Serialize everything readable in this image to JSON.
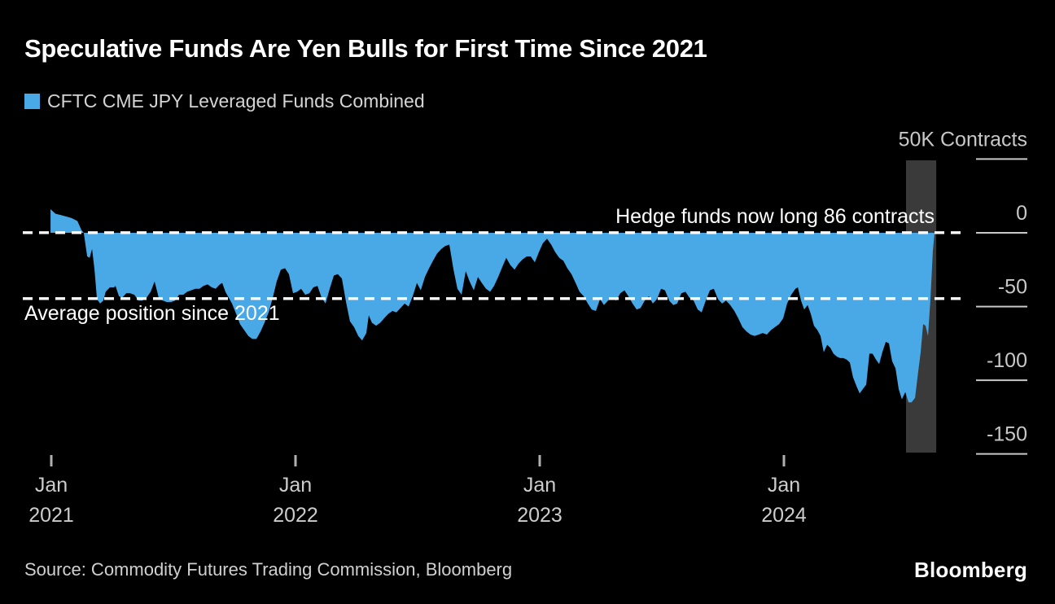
{
  "header": {
    "title": "Speculative Funds Are Yen Bulls for First Time Since 2021",
    "legend": {
      "label": "CFTC CME JPY Leveraged Funds Combined",
      "swatch_color": "#49a8e6"
    }
  },
  "axis": {
    "y_ticks": [
      {
        "value": 50,
        "label": "50K Contracts"
      },
      {
        "value": 0,
        "label": "0"
      },
      {
        "value": -50,
        "label": "-50"
      },
      {
        "value": -100,
        "label": "-100"
      },
      {
        "value": -150,
        "label": "-150"
      }
    ],
    "x_ticks": [
      {
        "t": 2021,
        "line1": "Jan",
        "line2": "2021"
      },
      {
        "t": 2022,
        "line1": "Jan",
        "line2": "2022"
      },
      {
        "t": 2023,
        "line1": "Jan",
        "line2": "2023"
      },
      {
        "t": 2024,
        "line1": "Jan",
        "line2": "2024"
      }
    ]
  },
  "annotations": {
    "now_line": {
      "text": "Hedge funds now long 86 contracts",
      "value": 0.086
    },
    "avg_line": {
      "text": "Average position since 2021",
      "value": -44.6
    }
  },
  "highlight_band": {
    "t_start": 2024.5,
    "t_end": 2024.617,
    "color": "#3a3a3a"
  },
  "footer": {
    "source": "Source: Commodity Futures Trading Commission, Bloomberg",
    "logo": "Bloomberg"
  },
  "chart_data": {
    "type": "area",
    "series_name": "CFTC CME JPY Leveraged Funds Combined",
    "unit": "thousand contracts",
    "xlim": [
      2020.883,
      2024.733
    ],
    "ylim": [
      -160,
      55
    ],
    "color": "#49a8e6",
    "baseline": 0,
    "points": [
      [
        2020.997,
        16
      ],
      [
        2021.017,
        13
      ],
      [
        2021.04,
        12
      ],
      [
        2021.063,
        11
      ],
      [
        2021.083,
        10
      ],
      [
        2021.107,
        8
      ],
      [
        2021.123,
        2
      ],
      [
        2021.133,
        0
      ],
      [
        2021.147,
        -16
      ],
      [
        2021.157,
        -17
      ],
      [
        2021.167,
        -11
      ],
      [
        2021.177,
        -25
      ],
      [
        2021.187,
        -45
      ],
      [
        2021.2,
        -48
      ],
      [
        2021.213,
        -46
      ],
      [
        2021.223,
        -40
      ],
      [
        2021.24,
        -37
      ],
      [
        2021.257,
        -37
      ],
      [
        2021.263,
        -36
      ],
      [
        2021.277,
        -43
      ],
      [
        2021.29,
        -44
      ],
      [
        2021.307,
        -41
      ],
      [
        2021.323,
        -41
      ],
      [
        2021.34,
        -42
      ],
      [
        2021.357,
        -46
      ],
      [
        2021.373,
        -46
      ],
      [
        2021.39,
        -44
      ],
      [
        2021.407,
        -40
      ],
      [
        2021.423,
        -33
      ],
      [
        2021.44,
        -44
      ],
      [
        2021.457,
        -46
      ],
      [
        2021.473,
        -47
      ],
      [
        2021.49,
        -47
      ],
      [
        2021.507,
        -46
      ],
      [
        2021.523,
        -42
      ],
      [
        2021.54,
        -42
      ],
      [
        2021.557,
        -40
      ],
      [
        2021.573,
        -39
      ],
      [
        2021.59,
        -38
      ],
      [
        2021.607,
        -38
      ],
      [
        2021.623,
        -36
      ],
      [
        2021.64,
        -35
      ],
      [
        2021.657,
        -37
      ],
      [
        2021.673,
        -38
      ],
      [
        2021.69,
        -35
      ],
      [
        2021.7,
        -34
      ],
      [
        2021.713,
        -40
      ],
      [
        2021.723,
        -43
      ],
      [
        2021.74,
        -48
      ],
      [
        2021.757,
        -55
      ],
      [
        2021.773,
        -62
      ],
      [
        2021.79,
        -66
      ],
      [
        2021.807,
        -70
      ],
      [
        2021.823,
        -72
      ],
      [
        2021.84,
        -72
      ],
      [
        2021.857,
        -67
      ],
      [
        2021.873,
        -61
      ],
      [
        2021.89,
        -54
      ],
      [
        2021.907,
        -44
      ],
      [
        2021.923,
        -33
      ],
      [
        2021.94,
        -25
      ],
      [
        2021.957,
        -24
      ],
      [
        2021.973,
        -28
      ],
      [
        2021.99,
        -41
      ],
      [
        2022.007,
        -40
      ],
      [
        2022.023,
        -38
      ],
      [
        2022.04,
        -42
      ],
      [
        2022.057,
        -41
      ],
      [
        2022.073,
        -37
      ],
      [
        2022.09,
        -36
      ],
      [
        2022.107,
        -44
      ],
      [
        2022.123,
        -48
      ],
      [
        2022.14,
        -38
      ],
      [
        2022.157,
        -29
      ],
      [
        2022.173,
        -28
      ],
      [
        2022.19,
        -31
      ],
      [
        2022.207,
        -47
      ],
      [
        2022.223,
        -60
      ],
      [
        2022.24,
        -64
      ],
      [
        2022.257,
        -70
      ],
      [
        2022.273,
        -73
      ],
      [
        2022.29,
        -68
      ],
      [
        2022.3,
        -56
      ],
      [
        2022.313,
        -61
      ],
      [
        2022.33,
        -63
      ],
      [
        2022.347,
        -61
      ],
      [
        2022.363,
        -58
      ],
      [
        2022.38,
        -55
      ],
      [
        2022.397,
        -53
      ],
      [
        2022.413,
        -54
      ],
      [
        2022.43,
        -51
      ],
      [
        2022.447,
        -48
      ],
      [
        2022.463,
        -50
      ],
      [
        2022.48,
        -43
      ],
      [
        2022.497,
        -34
      ],
      [
        2022.513,
        -39
      ],
      [
        2022.53,
        -30
      ],
      [
        2022.547,
        -24
      ],
      [
        2022.563,
        -19
      ],
      [
        2022.58,
        -14
      ],
      [
        2022.597,
        -11
      ],
      [
        2022.613,
        -9
      ],
      [
        2022.63,
        -8
      ],
      [
        2022.647,
        -25
      ],
      [
        2022.663,
        -38
      ],
      [
        2022.68,
        -42
      ],
      [
        2022.697,
        -26
      ],
      [
        2022.713,
        -33
      ],
      [
        2022.73,
        -39
      ],
      [
        2022.747,
        -30
      ],
      [
        2022.763,
        -34
      ],
      [
        2022.78,
        -38
      ],
      [
        2022.797,
        -40
      ],
      [
        2022.813,
        -36
      ],
      [
        2022.83,
        -30
      ],
      [
        2022.847,
        -23
      ],
      [
        2022.863,
        -17
      ],
      [
        2022.88,
        -22
      ],
      [
        2022.897,
        -25
      ],
      [
        2022.913,
        -21
      ],
      [
        2022.93,
        -18
      ],
      [
        2022.947,
        -16
      ],
      [
        2022.963,
        -16
      ],
      [
        2022.98,
        -20
      ],
      [
        2022.997,
        -13
      ],
      [
        2023.013,
        -7
      ],
      [
        2023.03,
        -4
      ],
      [
        2023.047,
        -8
      ],
      [
        2023.063,
        -13
      ],
      [
        2023.08,
        -17
      ],
      [
        2023.097,
        -19
      ],
      [
        2023.113,
        -24
      ],
      [
        2023.13,
        -28
      ],
      [
        2023.147,
        -34
      ],
      [
        2023.163,
        -40
      ],
      [
        2023.18,
        -43
      ],
      [
        2023.197,
        -48
      ],
      [
        2023.213,
        -52
      ],
      [
        2023.23,
        -53
      ],
      [
        2023.247,
        -45
      ],
      [
        2023.263,
        -49
      ],
      [
        2023.28,
        -46
      ],
      [
        2023.297,
        -44
      ],
      [
        2023.313,
        -46
      ],
      [
        2023.33,
        -41
      ],
      [
        2023.347,
        -39
      ],
      [
        2023.363,
        -43
      ],
      [
        2023.38,
        -48
      ],
      [
        2023.397,
        -52
      ],
      [
        2023.413,
        -51
      ],
      [
        2023.43,
        -46
      ],
      [
        2023.447,
        -43
      ],
      [
        2023.463,
        -48
      ],
      [
        2023.48,
        -45
      ],
      [
        2023.497,
        -38
      ],
      [
        2023.513,
        -39
      ],
      [
        2023.53,
        -46
      ],
      [
        2023.547,
        -49
      ],
      [
        2023.563,
        -48
      ],
      [
        2023.58,
        -41
      ],
      [
        2023.597,
        -40
      ],
      [
        2023.613,
        -44
      ],
      [
        2023.63,
        -46
      ],
      [
        2023.647,
        -52
      ],
      [
        2023.663,
        -54
      ],
      [
        2023.68,
        -46
      ],
      [
        2023.697,
        -39
      ],
      [
        2023.713,
        -38
      ],
      [
        2023.73,
        -45
      ],
      [
        2023.747,
        -48
      ],
      [
        2023.763,
        -46
      ],
      [
        2023.78,
        -49
      ],
      [
        2023.797,
        -53
      ],
      [
        2023.813,
        -58
      ],
      [
        2023.83,
        -64
      ],
      [
        2023.847,
        -67
      ],
      [
        2023.863,
        -69
      ],
      [
        2023.88,
        -70
      ],
      [
        2023.897,
        -69
      ],
      [
        2023.913,
        -68
      ],
      [
        2023.93,
        -69
      ],
      [
        2023.947,
        -66
      ],
      [
        2023.963,
        -64
      ],
      [
        2023.98,
        -62
      ],
      [
        2023.997,
        -58
      ],
      [
        2024.013,
        -48
      ],
      [
        2024.03,
        -42
      ],
      [
        2024.047,
        -38
      ],
      [
        2024.057,
        -37
      ],
      [
        2024.07,
        -46
      ],
      [
        2024.083,
        -52
      ],
      [
        2024.097,
        -49
      ],
      [
        2024.11,
        -55
      ],
      [
        2024.123,
        -63
      ],
      [
        2024.137,
        -66
      ],
      [
        2024.15,
        -70
      ],
      [
        2024.163,
        -81
      ],
      [
        2024.177,
        -76
      ],
      [
        2024.19,
        -78
      ],
      [
        2024.203,
        -82
      ],
      [
        2024.217,
        -84
      ],
      [
        2024.23,
        -85
      ],
      [
        2024.243,
        -85
      ],
      [
        2024.257,
        -86
      ],
      [
        2024.27,
        -88
      ],
      [
        2024.283,
        -98
      ],
      [
        2024.297,
        -104
      ],
      [
        2024.31,
        -109
      ],
      [
        2024.323,
        -106
      ],
      [
        2024.337,
        -103
      ],
      [
        2024.35,
        -82
      ],
      [
        2024.363,
        -82
      ],
      [
        2024.377,
        -86
      ],
      [
        2024.39,
        -89
      ],
      [
        2024.403,
        -81
      ],
      [
        2024.417,
        -74
      ],
      [
        2024.43,
        -75
      ],
      [
        2024.443,
        -87
      ],
      [
        2024.457,
        -92
      ],
      [
        2024.47,
        -106
      ],
      [
        2024.483,
        -113
      ],
      [
        2024.497,
        -108
      ],
      [
        2024.51,
        -115
      ],
      [
        2024.523,
        -115
      ],
      [
        2024.537,
        -112
      ],
      [
        2024.55,
        -94
      ],
      [
        2024.56,
        -81
      ],
      [
        2024.57,
        -62
      ],
      [
        2024.58,
        -63
      ],
      [
        2024.59,
        -70
      ],
      [
        2024.6,
        -45
      ],
      [
        2024.61,
        -12
      ],
      [
        2024.617,
        0.1
      ]
    ]
  }
}
